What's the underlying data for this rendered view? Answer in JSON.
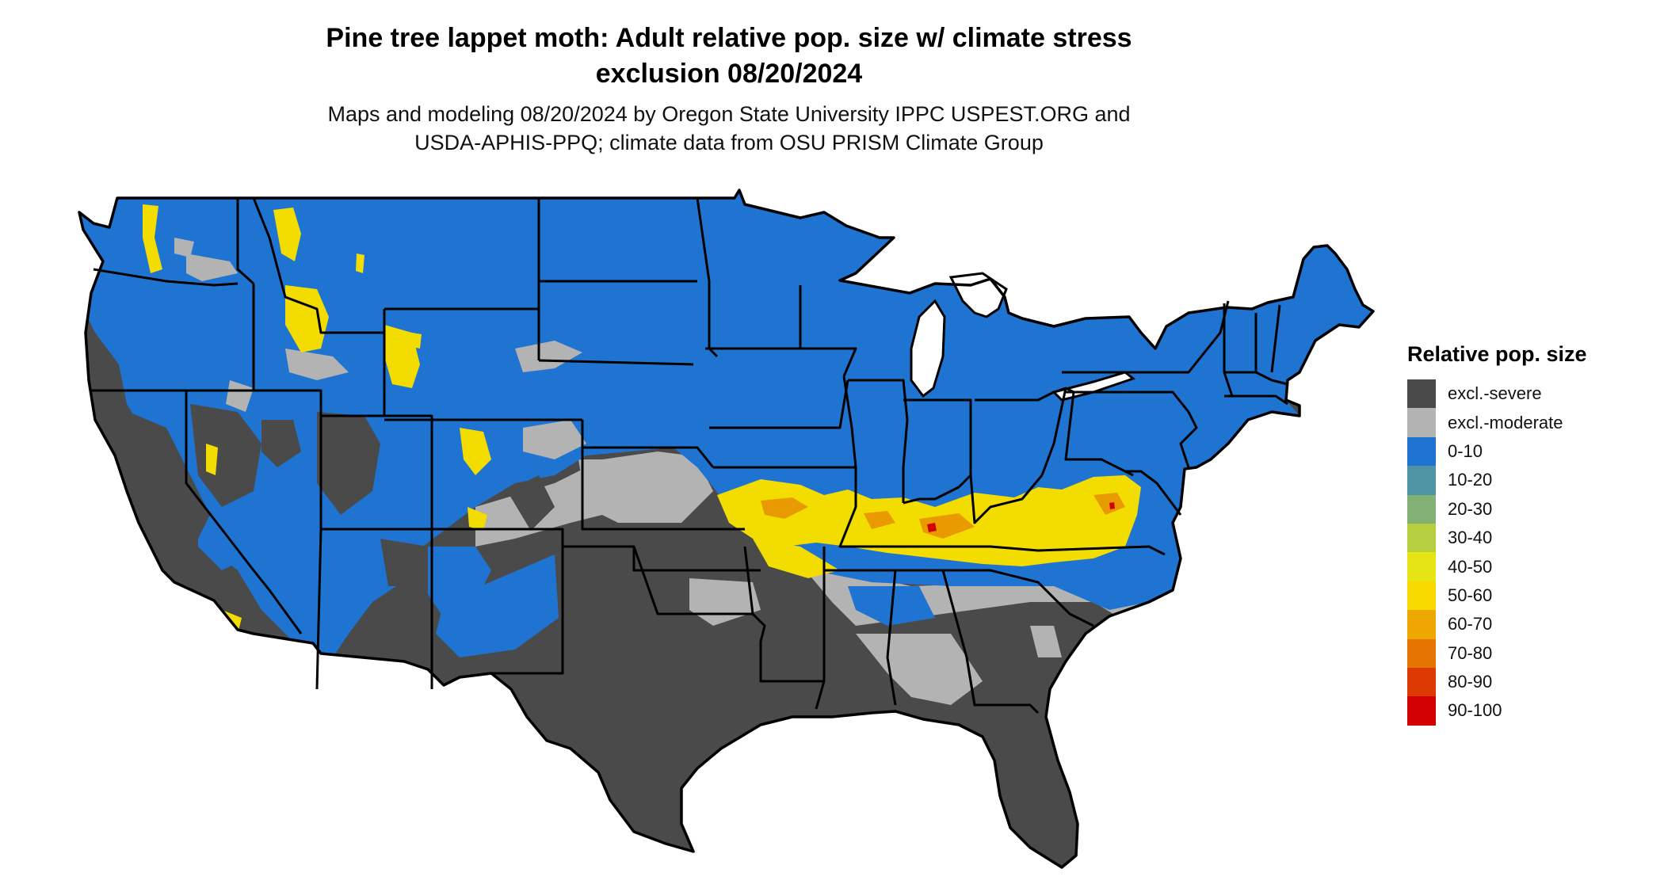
{
  "title_line1": "Pine tree lappet moth: Adult relative pop. size w/ climate stress",
  "title_line2": "exclusion 08/20/2024",
  "subtitle_line1": "Maps and modeling 08/20/2024 by Oregon State University IPPC USPEST.ORG and",
  "subtitle_line2": "USDA-APHIS-PPQ; climate data from OSU PRISM Climate Group",
  "legend": {
    "title": "Relative pop. size",
    "items": [
      {
        "label": "excl.-severe",
        "color": "#4a4a4a"
      },
      {
        "label": "excl.-moderate",
        "color": "#b3b3b3"
      },
      {
        "label": "0-10",
        "color": "#1f74d1"
      },
      {
        "label": "10-20",
        "color": "#4f94a5"
      },
      {
        "label": "20-30",
        "color": "#83b074"
      },
      {
        "label": "30-40",
        "color": "#b6cf3e"
      },
      {
        "label": "40-50",
        "color": "#e6e414"
      },
      {
        "label": "50-60",
        "color": "#f7d900"
      },
      {
        "label": "60-70",
        "color": "#eea600"
      },
      {
        "label": "70-80",
        "color": "#e57500"
      },
      {
        "label": "80-90",
        "color": "#dc3a00"
      },
      {
        "label": "90-100",
        "color": "#d20000"
      }
    ]
  },
  "map_colors": {
    "severe": "#4a4a4a",
    "moderate": "#b3b3b3",
    "low": "#1f74d1",
    "yellow": "#f3dc00",
    "orange": "#e89a00",
    "red": "#d20000",
    "border": "#000000"
  }
}
